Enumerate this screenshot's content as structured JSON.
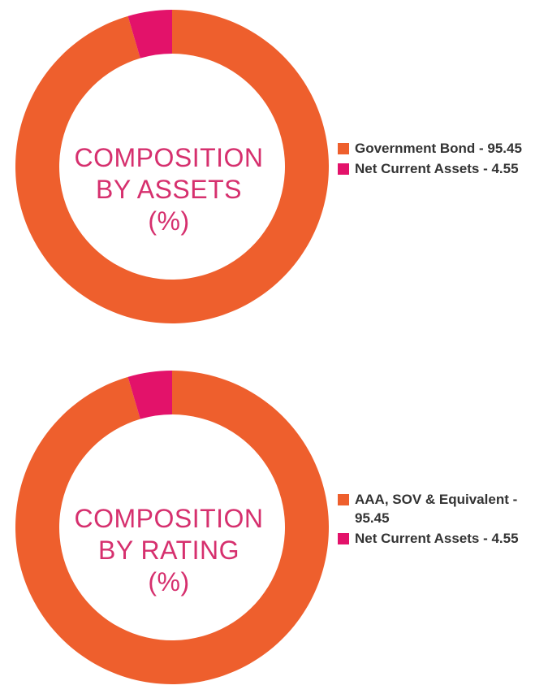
{
  "chart_data": [
    {
      "type": "pie",
      "donut": true,
      "title_lines": [
        "COMPOSITION",
        "BY ASSETS",
        "(%)"
      ],
      "slices": [
        {
          "label": "Government Bond - 95.45",
          "value": 95.45,
          "color": "#ee5f2d"
        },
        {
          "label": "Net Current Assets - 4.55",
          "value": 4.55,
          "color": "#e3126a"
        }
      ],
      "legend_position": "right"
    },
    {
      "type": "pie",
      "donut": true,
      "title_lines": [
        "COMPOSITION",
        "BY RATING",
        "(%)"
      ],
      "slices": [
        {
          "label": "AAA, SOV & Equivalent - 95.45",
          "value": 95.45,
          "color": "#ee5f2d"
        },
        {
          "label": "Net Current Assets - 4.55",
          "value": 4.55,
          "color": "#e3126a"
        }
      ],
      "legend_position": "right"
    }
  ],
  "colors": {
    "title": "#d6306e",
    "legend_text": "#333333"
  }
}
